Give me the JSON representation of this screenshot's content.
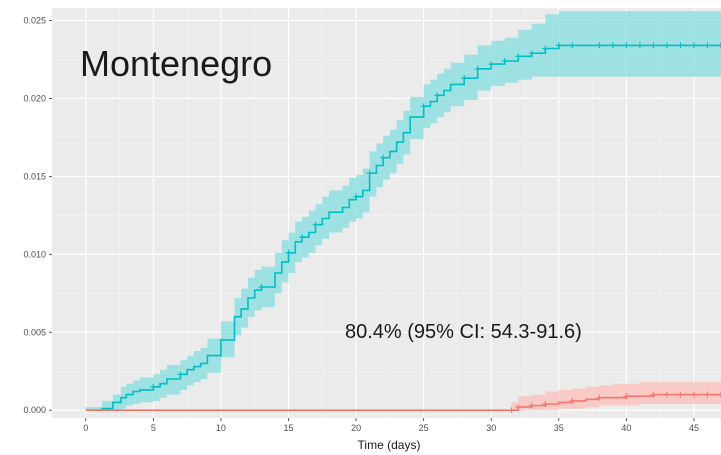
{
  "chart_data": {
    "type": "line",
    "title": "Montenegro",
    "annotation": "80.4% (95% CI: 54.3-91.6)",
    "xlabel": "Time (days)",
    "ylabel": "",
    "xlim": [
      -2.5,
      47
    ],
    "ylim": [
      -0.0005,
      0.0258
    ],
    "x_ticks": [
      0,
      5,
      10,
      15,
      20,
      25,
      30,
      35,
      40,
      45
    ],
    "x_tick_labels": [
      "0",
      "5",
      "10",
      "15",
      "20",
      "25",
      "30",
      "35",
      "40",
      "45"
    ],
    "y_ticks": [
      0,
      0.005,
      0.01,
      0.015,
      0.02,
      0.025
    ],
    "y_tick_labels": [
      "0.000",
      "0.005",
      "0.010",
      "0.015",
      "0.020",
      "0.025"
    ],
    "grid": true,
    "background": "#ebebeb",
    "series": [
      {
        "color": "#00bfc4",
        "band_color": "#8fdfe1",
        "step": true,
        "x": [
          0,
          1.2,
          2,
          2.6,
          3,
          3.5,
          4,
          5,
          5.5,
          6,
          7,
          7.5,
          8,
          8.5,
          9,
          10,
          11,
          11.5,
          12,
          12.5,
          13,
          14,
          14.5,
          15,
          15.5,
          16,
          16.5,
          17,
          17.5,
          18,
          19,
          19.5,
          20,
          20.5,
          21,
          21.5,
          22,
          22.5,
          23,
          23.5,
          24,
          25,
          25.5,
          26,
          26.5,
          27,
          28,
          29,
          30,
          31,
          32,
          33,
          34,
          35,
          36,
          38,
          40,
          42,
          44,
          46,
          47
        ],
        "y": [
          0,
          0.0001,
          0.0005,
          0.0008,
          0.001,
          0.0012,
          0.0013,
          0.0015,
          0.0017,
          0.002,
          0.0023,
          0.0026,
          0.0028,
          0.003,
          0.0035,
          0.0045,
          0.006,
          0.0065,
          0.0072,
          0.0077,
          0.0079,
          0.0088,
          0.0095,
          0.0101,
          0.0108,
          0.0111,
          0.0114,
          0.0119,
          0.0123,
          0.0127,
          0.013,
          0.0135,
          0.0137,
          0.0141,
          0.0152,
          0.0157,
          0.0162,
          0.0166,
          0.0172,
          0.0178,
          0.0188,
          0.0195,
          0.0198,
          0.0202,
          0.0205,
          0.0209,
          0.0213,
          0.0219,
          0.0222,
          0.0224,
          0.0227,
          0.0229,
          0.0232,
          0.0234,
          0.0234,
          0.0234,
          0.0234,
          0.0234,
          0.0234,
          0.0234,
          0.0234
        ],
        "lower": [
          0,
          0,
          0,
          0.0001,
          0.0003,
          0.0004,
          0.0005,
          0.0006,
          0.0008,
          0.001,
          0.0013,
          0.0016,
          0.0018,
          0.002,
          0.0024,
          0.0034,
          0.0048,
          0.0053,
          0.006,
          0.0064,
          0.0066,
          0.0075,
          0.0082,
          0.0088,
          0.0095,
          0.0098,
          0.0101,
          0.0106,
          0.011,
          0.0114,
          0.0117,
          0.0121,
          0.0123,
          0.0127,
          0.0137,
          0.0143,
          0.0148,
          0.0152,
          0.0158,
          0.0164,
          0.0174,
          0.0181,
          0.0184,
          0.0188,
          0.0191,
          0.0195,
          0.0199,
          0.0205,
          0.0208,
          0.021,
          0.0212,
          0.0214,
          0.0214,
          0.0214,
          0.0214,
          0.0214,
          0.0214,
          0.0214,
          0.0214,
          0.0214,
          0.0214
        ],
        "upper": [
          0.0002,
          0.0006,
          0.001,
          0.0015,
          0.0017,
          0.0019,
          0.0021,
          0.0023,
          0.0026,
          0.0029,
          0.0032,
          0.0035,
          0.0038,
          0.004,
          0.0046,
          0.0057,
          0.0072,
          0.0078,
          0.0085,
          0.009,
          0.0092,
          0.0101,
          0.0109,
          0.0114,
          0.0121,
          0.0124,
          0.0128,
          0.0132,
          0.0137,
          0.0141,
          0.0144,
          0.0149,
          0.0151,
          0.0155,
          0.0166,
          0.0171,
          0.0176,
          0.018,
          0.0186,
          0.0192,
          0.0201,
          0.0209,
          0.0212,
          0.0216,
          0.0219,
          0.0223,
          0.0228,
          0.0234,
          0.0237,
          0.0239,
          0.0244,
          0.0248,
          0.0254,
          0.0256,
          0.0256,
          0.0256,
          0.0256,
          0.0256,
          0.0256,
          0.0256,
          0.0256
        ],
        "markers": [
          5,
          7,
          13,
          15,
          16,
          17,
          20,
          21,
          22,
          25,
          26,
          28,
          29,
          30,
          31,
          32,
          33,
          34,
          35,
          36,
          38,
          39,
          40,
          41,
          42,
          43,
          44,
          45,
          46,
          47
        ]
      },
      {
        "color": "#f8766d",
        "band_color": "#f9c4c0",
        "step": true,
        "x": [
          0,
          31.5,
          32,
          33,
          34,
          35,
          36,
          37,
          38,
          39,
          40,
          41,
          42,
          43,
          44,
          45,
          46,
          47
        ],
        "y": [
          0,
          0,
          0.0002,
          0.0003,
          0.0004,
          0.0005,
          0.0006,
          0.0007,
          0.0008,
          0.0008,
          0.0009,
          0.0009,
          0.001,
          0.001,
          0.001,
          0.001,
          0.001,
          0.001
        ],
        "lower": [
          0,
          0,
          0,
          0,
          0,
          0.0001,
          0.0001,
          0.0002,
          0.0003,
          0.0003,
          0.0003,
          0.0004,
          0.0004,
          0.0004,
          0.0004,
          0.0004,
          0.0004,
          0.0004
        ],
        "upper": [
          0,
          0.0005,
          0.0009,
          0.001,
          0.0012,
          0.0013,
          0.0014,
          0.0015,
          0.0016,
          0.0017,
          0.0017,
          0.0018,
          0.0018,
          0.0018,
          0.0018,
          0.0018,
          0.0018,
          0.0018
        ],
        "markers": [
          31.5,
          32,
          33,
          34,
          36,
          38,
          40,
          42,
          43,
          44,
          45,
          46,
          47
        ]
      }
    ]
  }
}
